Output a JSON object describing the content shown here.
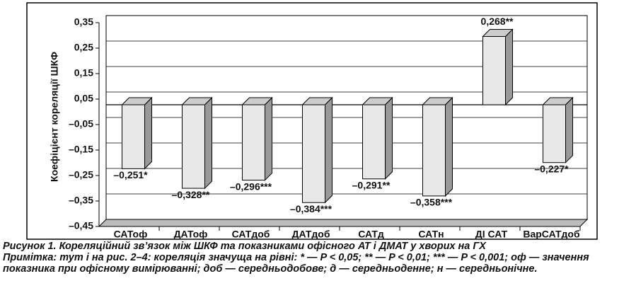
{
  "chart_data": {
    "type": "bar",
    "y_label": "Коефіцієнт кореляції ШКФ",
    "categories": [
      "САТоф",
      "ДАТоф",
      "САТдоб",
      "ДАТдоб",
      "САТд",
      "САТн",
      "ДІ САТ",
      "ВарСАТдоб"
    ],
    "values": [
      -0.251,
      -0.328,
      -0.296,
      -0.384,
      -0.291,
      -0.358,
      0.268,
      -0.227
    ],
    "value_labels": [
      "–0,251*",
      "–0,328**",
      "–0,296***",
      "–0,384***",
      "–0,291**",
      "–0,358***",
      "0,268**",
      "–0,227*"
    ],
    "color": "#e8e8e8",
    "ylim": [
      -0.45,
      0.35
    ],
    "yticks": [
      {
        "value": -0.45,
        "label": "–0,45"
      },
      {
        "value": -0.35,
        "label": "–0,35"
      },
      {
        "value": -0.25,
        "label": "–0,25"
      },
      {
        "value": -0.15,
        "label": "–0,15"
      },
      {
        "value": -0.05,
        "label": "–0,05"
      },
      {
        "value": 0.05,
        "label": "0,05"
      },
      {
        "value": 0.15,
        "label": "0,15"
      },
      {
        "value": 0.25,
        "label": "0,25"
      },
      {
        "value": 0.35,
        "label": "0,35"
      }
    ],
    "grid": true
  },
  "caption": {
    "figure": "Рисунок 1. Кореляційний зв’язок між ШКФ та показниками офісного АТ і ДМАТ у хворих на ГХ",
    "note": "Примітка: тут і на рис. 2–4: кореляція значуща на рівні: * — P < 0,05; ** — P < 0,01; *** — P < 0,001; оф — значення показника при офісному вимірюванні; доб — середньодобове; д — середньоденне; н — середньонічне."
  }
}
